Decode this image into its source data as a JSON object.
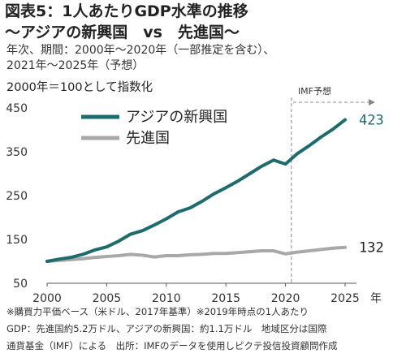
{
  "header": {
    "title_line1": "図表5：1人あたりGDP水準の推移",
    "title_line2": "〜アジアの新興国　vs　先進国〜",
    "subtitle_line1": "年次、期間：2000年〜2020年（一部推定を含む）、",
    "subtitle_line2": "2021年〜2025年（予想）",
    "index_note": "2000年＝100として指数化"
  },
  "chart_data": {
    "type": "line",
    "x": [
      2000,
      2001,
      2002,
      2003,
      2004,
      2005,
      2006,
      2007,
      2008,
      2009,
      2010,
      2011,
      2012,
      2013,
      2014,
      2015,
      2016,
      2017,
      2018,
      2019,
      2020,
      2021,
      2022,
      2023,
      2024,
      2025
    ],
    "series": [
      {
        "name": "アジアの新興国",
        "color": "#1d6b6b",
        "values": [
          100,
          105,
          109,
          116,
          126,
          133,
          146,
          162,
          170,
          183,
          197,
          213,
          222,
          237,
          254,
          268,
          283,
          300,
          317,
          331,
          322,
          346,
          364,
          384,
          402,
          423
        ],
        "end_label": "423"
      },
      {
        "name": "先進国",
        "color": "#a8a8a8",
        "values": [
          100,
          102,
          104,
          106,
          109,
          111,
          113,
          116,
          114,
          110,
          113,
          113,
          115,
          116,
          118,
          118,
          120,
          122,
          124,
          124,
          117,
          121,
          124,
          127,
          130,
          132
        ],
        "end_label": "132"
      }
    ],
    "yticks": [
      50,
      150,
      250,
      350,
      450
    ],
    "xticks": [
      2000,
      2005,
      2010,
      2015,
      2020,
      2025
    ],
    "x_unit": "年",
    "ylim": [
      50,
      450
    ],
    "xlim": [
      2000,
      2025
    ],
    "forecast_start": 2020.5,
    "forecast_label": "IMF予想",
    "legend_position": "top-left",
    "grid": false
  },
  "footnotes": {
    "line1": "※購買力平価ベース（米ドル、2017年基準）※2019年時点の1人あたり",
    "line2": "GDP：先進国約5.2万ドル、アジアの新興国：約1.1万ドル　地域区分は国際",
    "line3": "通貨基金（IMF）による　出所：IMFのデータを使用しピクテ投信投資顧問作成"
  }
}
